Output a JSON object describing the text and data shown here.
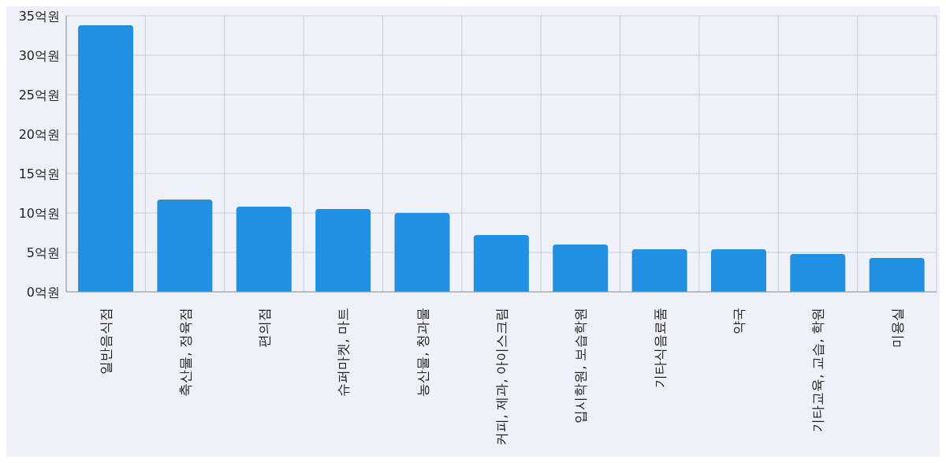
{
  "chart_data": {
    "type": "bar",
    "categories": [
      "일반음식점",
      "축산물, 정육점",
      "편의점",
      "슈퍼마켓, 마트",
      "농산물, 청과물",
      "커피, 제과, 아이스크림",
      "입시학원, 보습학원",
      "기타식음료품",
      "약국",
      "기타교육, 교습, 학원",
      "미용실"
    ],
    "values": [
      33.8,
      11.7,
      10.8,
      10.5,
      10.0,
      7.2,
      6.0,
      5.4,
      5.4,
      4.8,
      4.3
    ],
    "color": "#2190e3",
    "ylim": [
      0,
      35
    ],
    "yticks": [
      {
        "value": 0,
        "label": "0억원"
      },
      {
        "value": 5,
        "label": "5억원"
      },
      {
        "value": 10,
        "label": "10억원"
      },
      {
        "value": 15,
        "label": "15억원"
      },
      {
        "value": 20,
        "label": "20억원"
      },
      {
        "value": 25,
        "label": "25억원"
      },
      {
        "value": 30,
        "label": "30억원"
      },
      {
        "value": 35,
        "label": "35억원"
      }
    ],
    "grid": true
  }
}
